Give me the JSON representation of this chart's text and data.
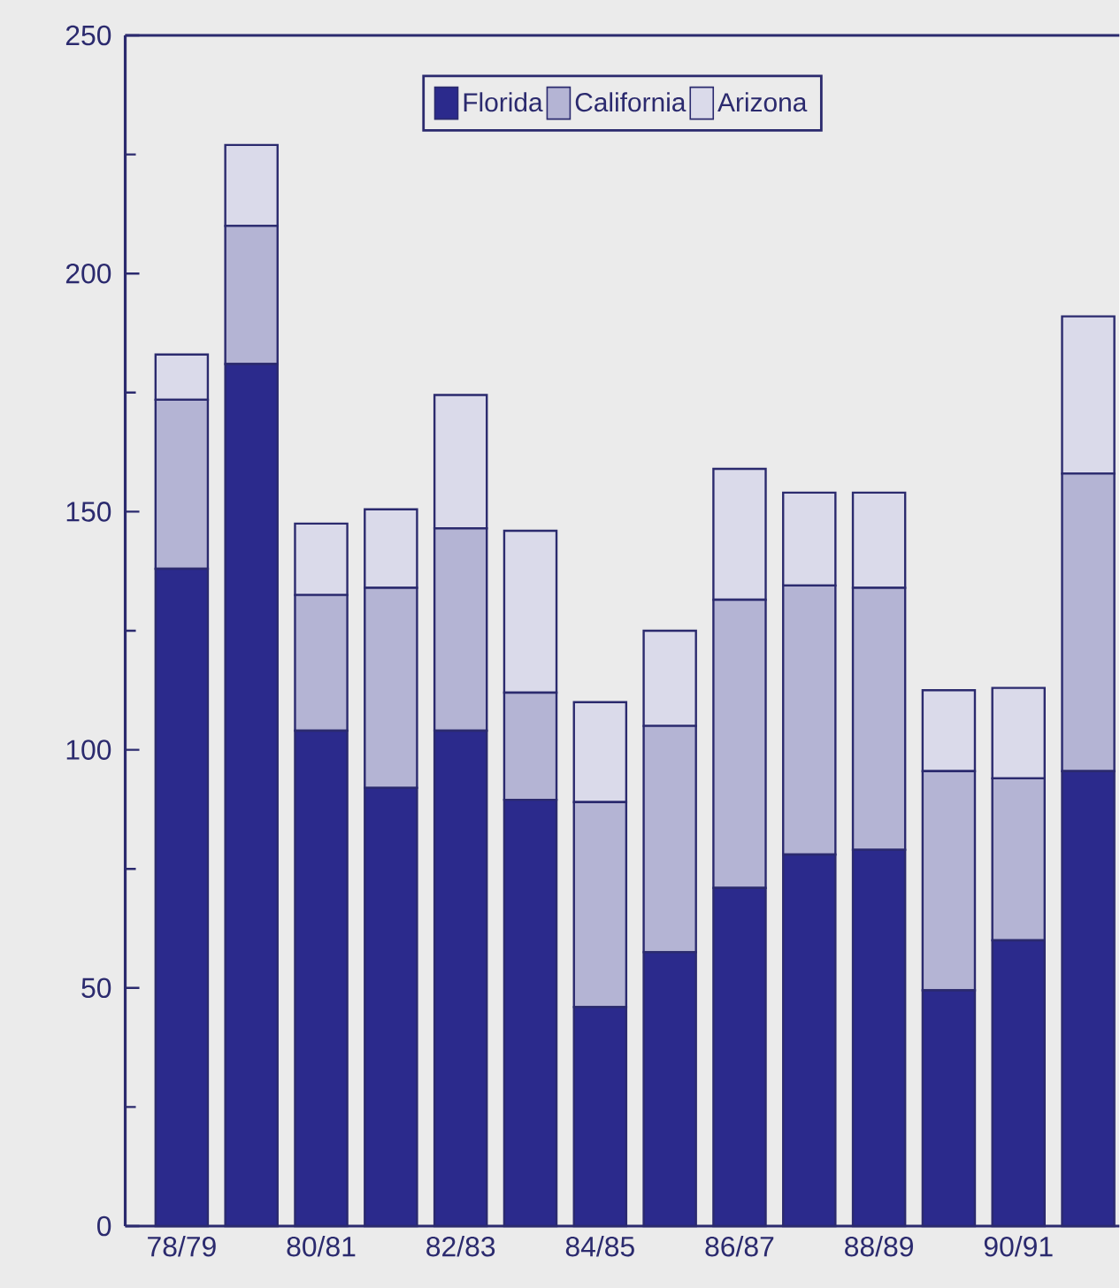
{
  "chart_data": {
    "type": "bar",
    "stacked": true,
    "categories": [
      "78/79",
      null,
      "80/81",
      null,
      "82/83",
      null,
      "84/85",
      null,
      "86/87",
      null,
      "88/89",
      null,
      "90/91",
      null
    ],
    "series": [
      {
        "name": "Florida",
        "color": "#2b2a8c",
        "values": [
          138,
          181,
          104,
          92,
          104,
          89.5,
          46,
          57.5,
          71,
          78,
          79,
          49.5,
          60,
          95.5
        ]
      },
      {
        "name": "California",
        "color": "#b4b4d4",
        "values": [
          35.5,
          29,
          28.5,
          42,
          42.5,
          22.5,
          43,
          47.5,
          60.5,
          56.5,
          55,
          46,
          34,
          62.5
        ]
      },
      {
        "name": "Arizona",
        "color": "#dadaea",
        "values": [
          9.5,
          17,
          15,
          16.5,
          28,
          34,
          21,
          20,
          27.5,
          19.5,
          20,
          17,
          19,
          33
        ]
      }
    ],
    "ylim": [
      0,
      250
    ],
    "yticks": [
      0,
      50,
      100,
      150,
      200,
      250
    ],
    "grid": false,
    "legend": "top"
  }
}
